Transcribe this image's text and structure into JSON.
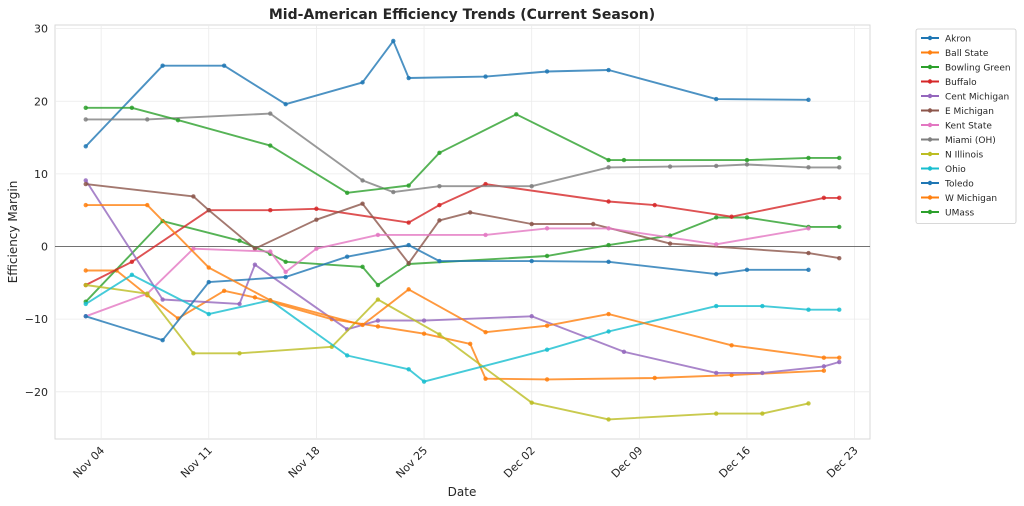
{
  "chart_data": {
    "type": "line",
    "title": "Mid-American Efficiency Trends (Current Season)",
    "xlabel": "Date",
    "ylabel": "Efficiency Margin",
    "x_ticks": [
      "Nov 04",
      "Nov 11",
      "Nov 18",
      "Nov 25",
      "Dec 02",
      "Dec 09",
      "Dec 16",
      "Dec 23"
    ],
    "x_tick_dates": [
      "2024-11-04",
      "2024-11-11",
      "2024-11-18",
      "2024-11-25",
      "2024-12-02",
      "2024-12-09",
      "2024-12-16",
      "2024-12-23"
    ],
    "y_ticks": [
      -20,
      -10,
      0,
      10,
      20,
      30
    ],
    "xlim": [
      "2024-11-01",
      "2024-12-24"
    ],
    "ylim": [
      -26.5,
      30.5
    ],
    "grid": true,
    "zero_line": true,
    "legend_position": "outside-right",
    "series": [
      {
        "name": "Akron",
        "color": "#1f77b4",
        "points": [
          [
            "2024-11-03",
            13.8
          ],
          [
            "2024-11-08",
            24.9
          ],
          [
            "2024-11-12",
            24.9
          ],
          [
            "2024-11-16",
            19.6
          ],
          [
            "2024-11-21",
            22.6
          ],
          [
            "2024-11-23",
            28.3
          ],
          [
            "2024-11-24",
            23.2
          ],
          [
            "2024-11-29",
            23.4
          ],
          [
            "2024-12-03",
            24.1
          ],
          [
            "2024-12-07",
            24.3
          ],
          [
            "2024-12-14",
            20.3
          ],
          [
            "2024-12-20",
            20.2
          ]
        ]
      },
      {
        "name": "Ball State",
        "color": "#ff7f0e",
        "points": [
          [
            "2024-11-03",
            -3.3
          ],
          [
            "2024-11-05",
            -3.3
          ],
          [
            "2024-11-07",
            -6.7
          ],
          [
            "2024-11-09",
            -9.9
          ],
          [
            "2024-11-12",
            -6.1
          ],
          [
            "2024-11-14",
            -7.0
          ],
          [
            "2024-11-19",
            -10.0
          ],
          [
            "2024-11-22",
            -11.0
          ],
          [
            "2024-11-25",
            -12.0
          ],
          [
            "2024-11-28",
            -13.4
          ],
          [
            "2024-11-29",
            -18.2
          ],
          [
            "2024-12-03",
            -18.3
          ],
          [
            "2024-12-10",
            -18.1
          ],
          [
            "2024-12-15",
            -17.7
          ],
          [
            "2024-12-21",
            -17.1
          ]
        ]
      },
      {
        "name": "Bowling Green",
        "color": "#2ca02c",
        "points": [
          [
            "2024-11-03",
            -7.6
          ],
          [
            "2024-11-08",
            3.5
          ],
          [
            "2024-11-13",
            0.8
          ],
          [
            "2024-11-15",
            -1.0
          ],
          [
            "2024-11-16",
            -2.1
          ],
          [
            "2024-11-21",
            -2.8
          ],
          [
            "2024-11-22",
            -5.3
          ],
          [
            "2024-11-24",
            -2.4
          ],
          [
            "2024-12-03",
            -1.3
          ],
          [
            "2024-12-07",
            0.2
          ],
          [
            "2024-12-11",
            1.5
          ],
          [
            "2024-12-14",
            4.0
          ],
          [
            "2024-12-16",
            4.0
          ],
          [
            "2024-12-20",
            2.7
          ],
          [
            "2024-12-22",
            2.7
          ]
        ]
      },
      {
        "name": "Buffalo",
        "color": "#d62728",
        "points": [
          [
            "2024-11-03",
            -5.3
          ],
          [
            "2024-11-06",
            -2.1
          ],
          [
            "2024-11-11",
            5.0
          ],
          [
            "2024-11-15",
            5.0
          ],
          [
            "2024-11-18",
            5.2
          ],
          [
            "2024-11-24",
            3.3
          ],
          [
            "2024-11-26",
            5.7
          ],
          [
            "2024-11-29",
            8.6
          ],
          [
            "2024-12-07",
            6.2
          ],
          [
            "2024-12-10",
            5.7
          ],
          [
            "2024-12-15",
            4.1
          ],
          [
            "2024-12-21",
            6.7
          ],
          [
            "2024-12-22",
            6.7
          ]
        ]
      },
      {
        "name": "Cent Michigan",
        "color": "#9467bd",
        "points": [
          [
            "2024-11-03",
            9.1
          ],
          [
            "2024-11-08",
            -7.3
          ],
          [
            "2024-11-13",
            -7.9
          ],
          [
            "2024-11-14",
            -2.5
          ],
          [
            "2024-11-20",
            -11.4
          ],
          [
            "2024-11-22",
            -10.2
          ],
          [
            "2024-11-25",
            -10.2
          ],
          [
            "2024-12-02",
            -9.6
          ],
          [
            "2024-12-08",
            -14.5
          ],
          [
            "2024-12-14",
            -17.4
          ],
          [
            "2024-12-17",
            -17.4
          ],
          [
            "2024-12-21",
            -16.5
          ],
          [
            "2024-12-22",
            -15.9
          ]
        ]
      },
      {
        "name": "E Michigan",
        "color": "#8c564b",
        "points": [
          [
            "2024-11-03",
            8.6
          ],
          [
            "2024-11-10",
            6.9
          ],
          [
            "2024-11-11",
            5.0
          ],
          [
            "2024-11-14",
            -0.3
          ],
          [
            "2024-11-18",
            3.7
          ],
          [
            "2024-11-21",
            5.9
          ],
          [
            "2024-11-24",
            -2.3
          ],
          [
            "2024-11-26",
            3.6
          ],
          [
            "2024-11-28",
            4.7
          ],
          [
            "2024-12-02",
            3.1
          ],
          [
            "2024-12-06",
            3.1
          ],
          [
            "2024-12-11",
            0.4
          ],
          [
            "2024-12-20",
            -0.9
          ],
          [
            "2024-12-22",
            -1.6
          ]
        ]
      },
      {
        "name": "Kent State",
        "color": "#e377c2",
        "points": [
          [
            "2024-11-03",
            -9.6
          ],
          [
            "2024-11-07",
            -6.5
          ],
          [
            "2024-11-10",
            -0.3
          ],
          [
            "2024-11-15",
            -0.7
          ],
          [
            "2024-11-16",
            -3.5
          ],
          [
            "2024-11-18",
            -0.3
          ],
          [
            "2024-11-22",
            1.6
          ],
          [
            "2024-11-29",
            1.6
          ],
          [
            "2024-12-03",
            2.5
          ],
          [
            "2024-12-07",
            2.5
          ],
          [
            "2024-12-14",
            0.3
          ],
          [
            "2024-12-20",
            2.5
          ]
        ]
      },
      {
        "name": "Miami (OH)",
        "color": "#7f7f7f",
        "points": [
          [
            "2024-11-03",
            17.5
          ],
          [
            "2024-11-07",
            17.5
          ],
          [
            "2024-11-15",
            18.3
          ],
          [
            "2024-11-21",
            9.1
          ],
          [
            "2024-11-23",
            7.5
          ],
          [
            "2024-11-26",
            8.3
          ],
          [
            "2024-12-02",
            8.3
          ],
          [
            "2024-12-07",
            10.9
          ],
          [
            "2024-12-11",
            11.0
          ],
          [
            "2024-12-14",
            11.1
          ],
          [
            "2024-12-16",
            11.3
          ],
          [
            "2024-12-20",
            10.9
          ],
          [
            "2024-12-22",
            10.9
          ]
        ]
      },
      {
        "name": "N Illinois",
        "color": "#bcbd22",
        "points": [
          [
            "2024-11-03",
            -5.3
          ],
          [
            "2024-11-07",
            -6.5
          ],
          [
            "2024-11-10",
            -14.7
          ],
          [
            "2024-11-13",
            -14.7
          ],
          [
            "2024-11-19",
            -13.8
          ],
          [
            "2024-11-22",
            -7.3
          ],
          [
            "2024-11-26",
            -12.1
          ],
          [
            "2024-12-02",
            -21.5
          ],
          [
            "2024-12-07",
            -23.8
          ],
          [
            "2024-12-14",
            -23.0
          ],
          [
            "2024-12-17",
            -23.0
          ],
          [
            "2024-12-20",
            -21.6
          ]
        ]
      },
      {
        "name": "Ohio",
        "color": "#17becf",
        "points": [
          [
            "2024-11-03",
            -7.9
          ],
          [
            "2024-11-06",
            -3.9
          ],
          [
            "2024-11-11",
            -9.3
          ],
          [
            "2024-11-15",
            -7.4
          ],
          [
            "2024-11-20",
            -15.0
          ],
          [
            "2024-11-24",
            -16.9
          ],
          [
            "2024-11-25",
            -18.6
          ],
          [
            "2024-12-03",
            -14.2
          ],
          [
            "2024-12-07",
            -11.7
          ],
          [
            "2024-12-14",
            -8.2
          ],
          [
            "2024-12-17",
            -8.2
          ],
          [
            "2024-12-20",
            -8.7
          ],
          [
            "2024-12-22",
            -8.7
          ]
        ]
      },
      {
        "name": "Toledo",
        "color": "#1f77b4",
        "points": [
          [
            "2024-11-03",
            -9.6
          ],
          [
            "2024-11-08",
            -12.9
          ],
          [
            "2024-11-11",
            -4.9
          ],
          [
            "2024-11-16",
            -4.2
          ],
          [
            "2024-11-20",
            -1.4
          ],
          [
            "2024-11-24",
            0.2
          ],
          [
            "2024-11-26",
            -2.0
          ],
          [
            "2024-12-02",
            -2.0
          ],
          [
            "2024-12-07",
            -2.1
          ],
          [
            "2024-12-14",
            -3.8
          ],
          [
            "2024-12-16",
            -3.2
          ],
          [
            "2024-12-20",
            -3.2
          ]
        ]
      },
      {
        "name": "W Michigan",
        "color": "#ff7f0e",
        "points": [
          [
            "2024-11-03",
            5.7
          ],
          [
            "2024-11-07",
            5.7
          ],
          [
            "2024-11-11",
            -2.9
          ],
          [
            "2024-11-15",
            -7.4
          ],
          [
            "2024-11-21",
            -10.8
          ],
          [
            "2024-11-24",
            -5.9
          ],
          [
            "2024-11-29",
            -11.8
          ],
          [
            "2024-12-03",
            -10.9
          ],
          [
            "2024-12-07",
            -9.3
          ],
          [
            "2024-12-15",
            -13.6
          ],
          [
            "2024-12-21",
            -15.3
          ],
          [
            "2024-12-22",
            -15.3
          ]
        ]
      },
      {
        "name": "UMass",
        "color": "#2ca02c",
        "points": [
          [
            "2024-11-03",
            19.1
          ],
          [
            "2024-11-06",
            19.1
          ],
          [
            "2024-11-09",
            17.4
          ],
          [
            "2024-11-15",
            13.9
          ],
          [
            "2024-11-20",
            7.4
          ],
          [
            "2024-11-24",
            8.4
          ],
          [
            "2024-11-26",
            12.9
          ],
          [
            "2024-12-01",
            18.2
          ],
          [
            "2024-12-07",
            11.9
          ],
          [
            "2024-12-08",
            11.9
          ],
          [
            "2024-12-16",
            11.9
          ],
          [
            "2024-12-20",
            12.2
          ],
          [
            "2024-12-22",
            12.2
          ]
        ]
      }
    ]
  }
}
